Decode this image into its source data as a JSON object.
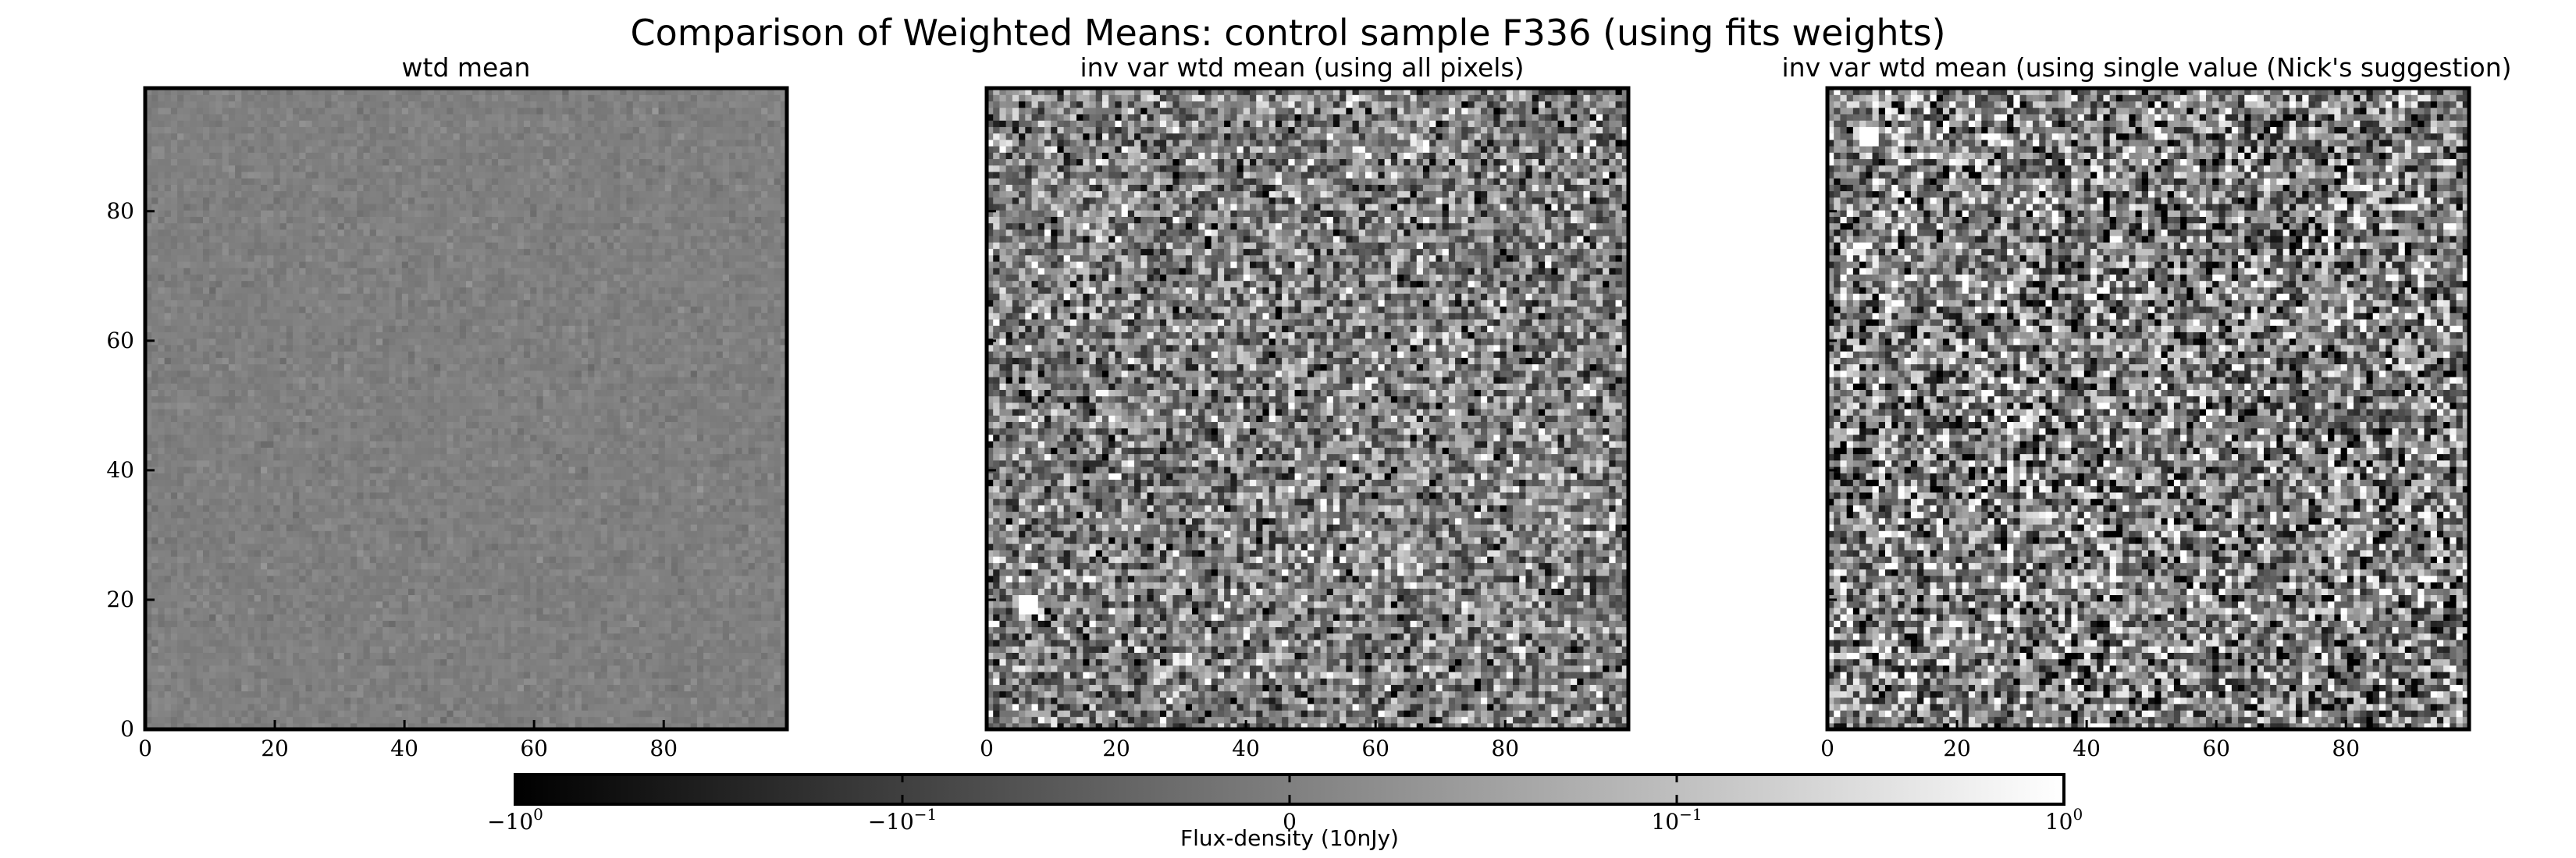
{
  "figure": {
    "title": "Comparison of Weighted Means: control sample F336 (using fits weights)"
  },
  "chart_data": [
    {
      "type": "heatmap",
      "title": "wtd mean",
      "grid_size": [
        100,
        100
      ],
      "xlim": [
        0,
        99
      ],
      "ylim": [
        0,
        99
      ],
      "xticks": [
        0,
        20,
        40,
        60,
        80
      ],
      "yticks": [
        0,
        20,
        40,
        60,
        80
      ],
      "ytick_labels_shown": true,
      "colormap": "gray",
      "value_mean": 0,
      "value_spread": 0.05,
      "grid": false
    },
    {
      "type": "heatmap",
      "title": "inv var wtd mean (using all pixels)",
      "grid_size": [
        100,
        100
      ],
      "xlim": [
        0,
        99
      ],
      "ylim": [
        0,
        99
      ],
      "xticks": [
        0,
        20,
        40,
        60,
        80
      ],
      "yticks": [
        0,
        20,
        40,
        60,
        80
      ],
      "ytick_labels_shown": false,
      "colormap": "gray",
      "value_mean": 0,
      "value_spread": 0.45,
      "bright_spot": {
        "x": 6,
        "y": 19
      },
      "grid": false
    },
    {
      "type": "heatmap",
      "title": "inv var wtd mean (using single value (Nick's suggestion)",
      "grid_size": [
        100,
        100
      ],
      "xlim": [
        0,
        99
      ],
      "ylim": [
        0,
        99
      ],
      "xticks": [
        0,
        20,
        40,
        60,
        80
      ],
      "yticks": [
        0,
        20,
        40,
        60,
        80
      ],
      "ytick_labels_shown": false,
      "colormap": "gray",
      "value_mean": 0,
      "value_spread": 0.6,
      "bright_spot": {
        "x": 6,
        "y": 92
      },
      "grid": false
    }
  ],
  "colorbar": {
    "label": "Flux-density (10nJy)",
    "scale": "symlog",
    "range": [
      -1,
      1
    ],
    "ticks": [
      {
        "base": "−10",
        "exp": "0"
      },
      {
        "base": "−10",
        "exp": "−1"
      },
      {
        "base": "0",
        "exp": ""
      },
      {
        "base": "10",
        "exp": "−1"
      },
      {
        "base": "10",
        "exp": "0"
      }
    ]
  }
}
